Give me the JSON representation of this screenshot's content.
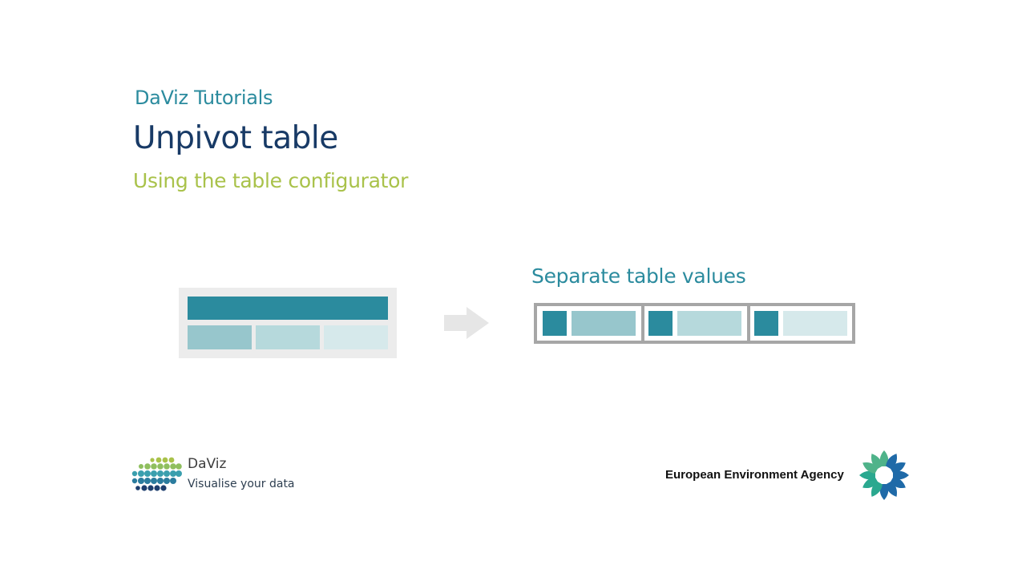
{
  "slide": {
    "kicker": "DaViz Tutorials",
    "title": "Unpivot table",
    "subtitle": "Using the table configurator"
  },
  "illustration": {
    "result_label": "Separate table values",
    "colors": {
      "header": "#2b8b9e",
      "cell_dark": "#97c6cc",
      "cell_mid": "#b6d9dc",
      "cell_light": "#d6e9eb",
      "frame": "#ececec",
      "border": "#a6a6a6",
      "arrow": "#e6e6e6"
    }
  },
  "footer": {
    "daviz_name": "DaViz",
    "daviz_tagline": "Visualise your data",
    "eea_name": "European Environment Agency",
    "daviz_logo_icon": "daviz-dots-icon",
    "eea_logo_icon": "eea-sun-icon"
  }
}
